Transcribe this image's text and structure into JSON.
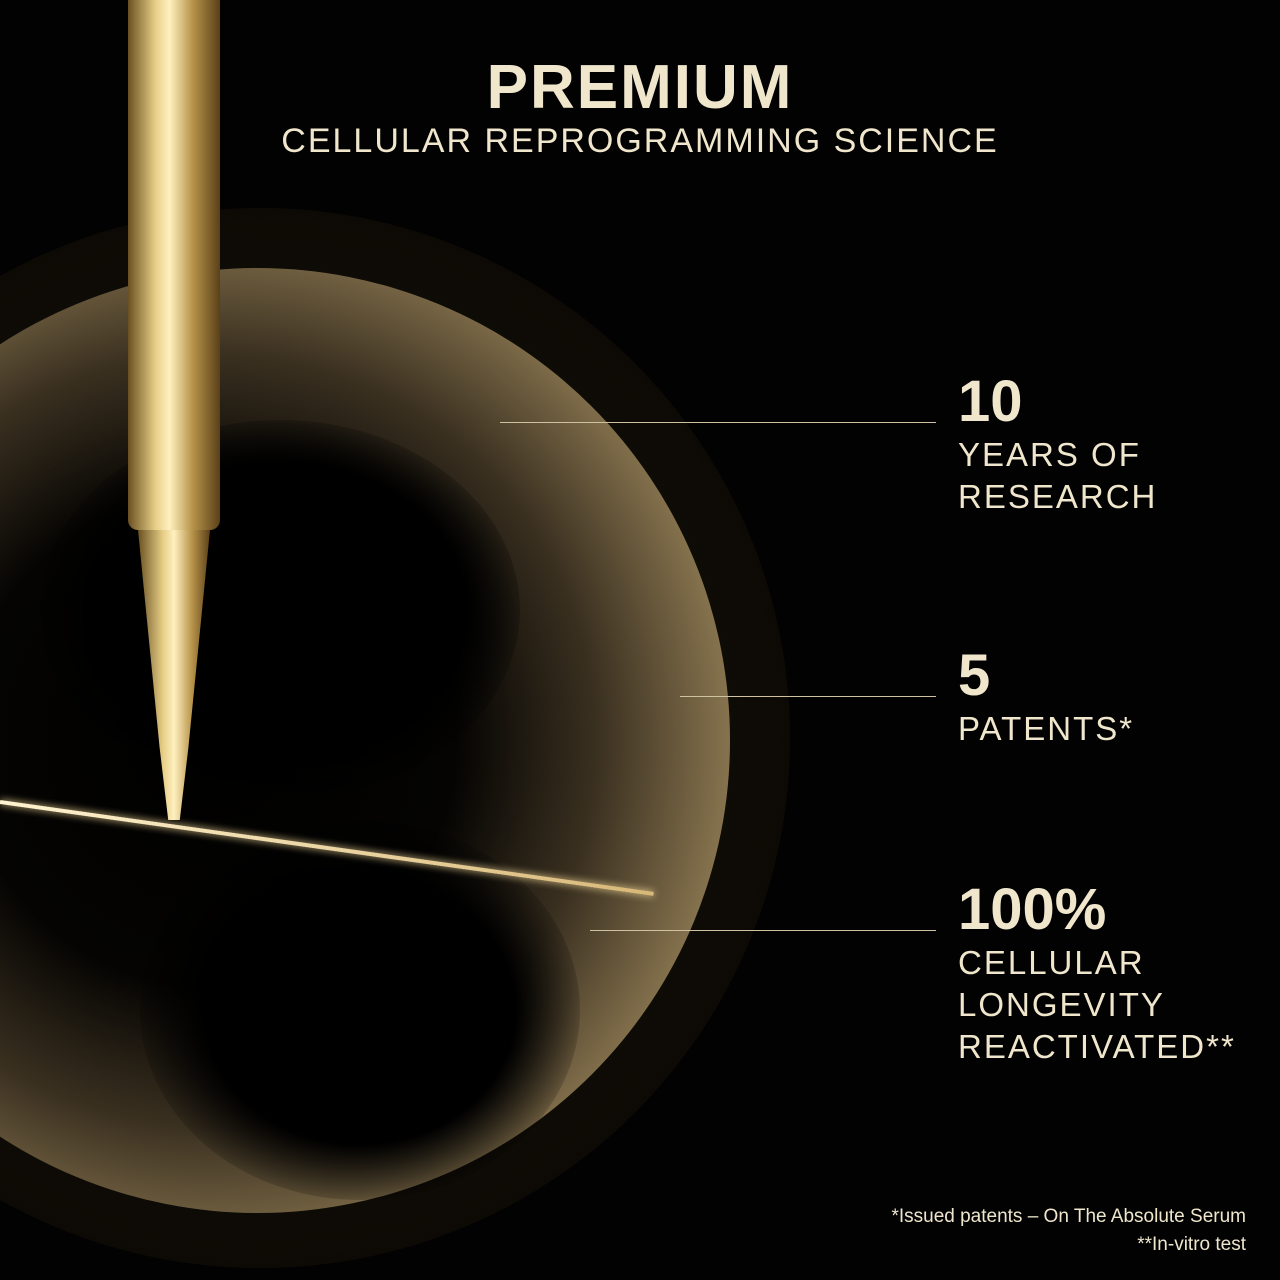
{
  "header": {
    "title": "PREMIUM",
    "subtitle": "CELLULAR REPROGRAMMING SCIENCE"
  },
  "stats": [
    {
      "value": "10",
      "label_lines": [
        "YEARS OF",
        "RESEARCH"
      ]
    },
    {
      "value": "5",
      "label_lines": [
        "PATENTS*"
      ]
    },
    {
      "value": "100%",
      "label_lines": [
        "CELLULAR",
        "LONGEVITY",
        "REACTIVATED**"
      ]
    }
  ],
  "footnotes": [
    "*Issued patents – On The Absolute Serum",
    "**In-vitro test"
  ],
  "colors": {
    "text": "#efe6cc",
    "background": "#020202",
    "gold": "#d8b878"
  }
}
